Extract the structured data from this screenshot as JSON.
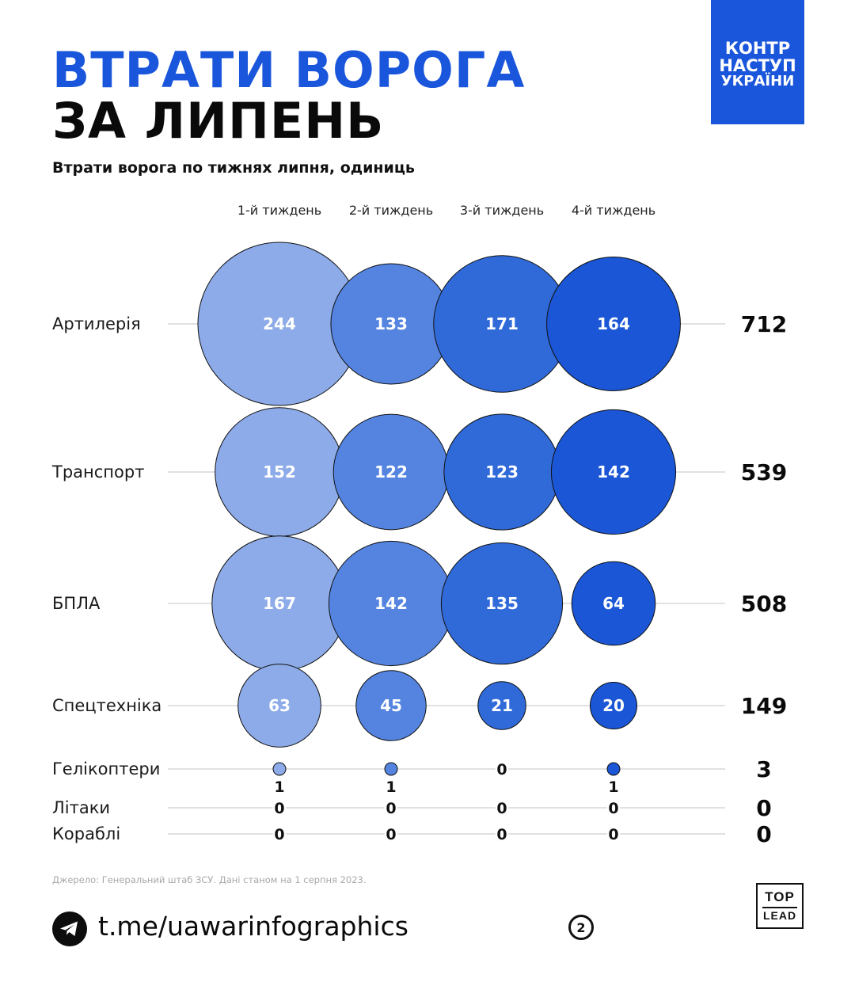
{
  "header": {
    "title_line1": "ВТРАТИ ВОРОГА",
    "title_line2": "ЗА ЛИПЕНЬ",
    "badge": [
      "КОНТР",
      "НАСТУП",
      "УКРАЇНИ"
    ],
    "subtitle": "Втрати ворога по тижнях липня, одиниць"
  },
  "chart_data": {
    "type": "bubble-matrix",
    "title": "Втрати ворога по тижнях липня, одиниць",
    "columns": [
      "1-й тиждень",
      "2-й тиждень",
      "3-й тиждень",
      "4-й тиждень"
    ],
    "column_colors": [
      "#8dabe8",
      "#5484e0",
      "#306ad8",
      "#1a56d6"
    ],
    "rows": [
      {
        "label": "Артилерія",
        "values": [
          244,
          133,
          171,
          164
        ],
        "total": 712
      },
      {
        "label": "Транспорт",
        "values": [
          152,
          122,
          123,
          142
        ],
        "total": 539
      },
      {
        "label": "БПЛА",
        "values": [
          167,
          142,
          135,
          64
        ],
        "total": 508
      },
      {
        "label": "Спецтехніка",
        "values": [
          63,
          45,
          21,
          20
        ],
        "total": 149
      },
      {
        "label": "Гелікоптери",
        "values": [
          1,
          1,
          0,
          1
        ],
        "total": 3
      },
      {
        "label": "Літаки",
        "values": [
          0,
          0,
          0,
          0
        ],
        "total": 0
      },
      {
        "label": "Кораблі",
        "values": [
          0,
          0,
          0,
          0
        ],
        "total": 0
      }
    ]
  },
  "footer": {
    "source": "Джерело: Генеральний штаб ЗСУ. Дані станом на 1 серпня 2023.",
    "link": "t.me/uawarinfographics",
    "page_number": "2",
    "logo_top": "TOP",
    "logo_bottom": "LEAD"
  },
  "icons": {
    "telegram": "telegram-icon"
  }
}
